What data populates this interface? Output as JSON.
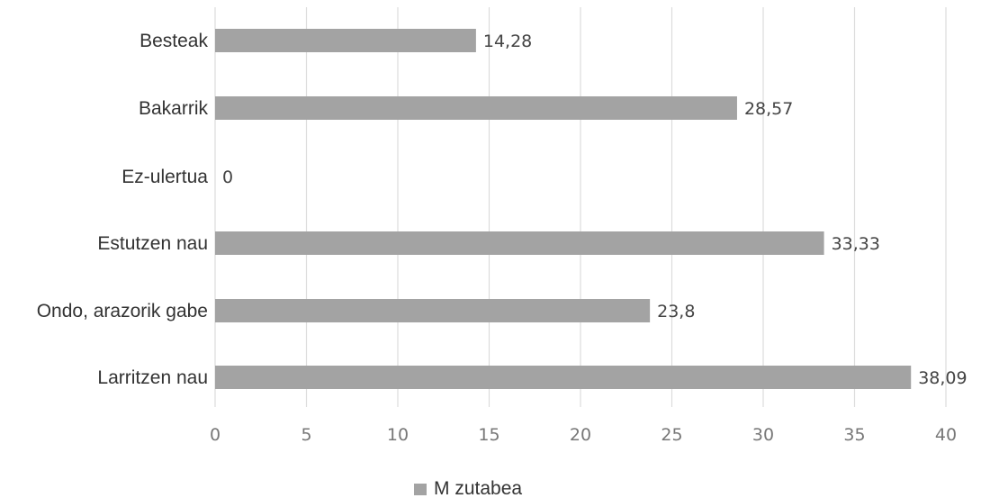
{
  "chart_data": {
    "type": "bar",
    "orientation": "horizontal",
    "categories": [
      "Larritzen nau",
      "Ondo, arazorik gabe",
      "Estutzen nau",
      "Ez-ulertua",
      "Bakarrik",
      "Besteak"
    ],
    "series": [
      {
        "name": "M zutabea",
        "values": [
          38.09,
          23.8,
          33.33,
          0,
          28.57,
          14.28
        ],
        "labels": [
          "38,09",
          "23,8",
          "33,33",
          "0",
          "28,57",
          "14,28"
        ]
      }
    ],
    "xlim": [
      0,
      40
    ],
    "xticks": [
      "0",
      "5",
      "10",
      "15",
      "20",
      "25",
      "30",
      "35",
      "40"
    ],
    "grid": true,
    "legend_position": "bottom",
    "title": "",
    "xlabel": "",
    "ylabel": ""
  },
  "colors": {
    "bar": "#a3a3a3",
    "grid": "#dcdcdc"
  }
}
